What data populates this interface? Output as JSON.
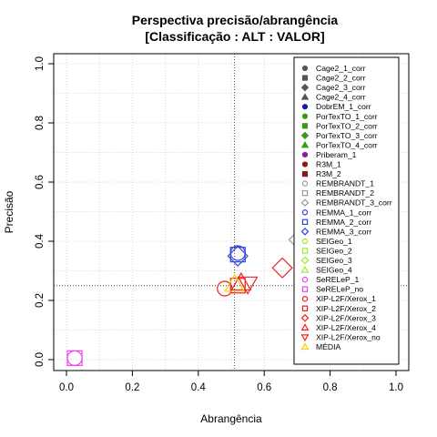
{
  "chart_data": {
    "type": "scatter",
    "title": "Perspectiva precisão/abrangência",
    "subtitle": "[Classificação : ALT : VALOR]",
    "xlabel": "Abrangência",
    "ylabel": "Precisão",
    "xlim": [
      0,
      1
    ],
    "ylim": [
      0,
      1
    ],
    "xticks": [
      "0.0",
      "0.2",
      "0.4",
      "0.6",
      "0.8",
      "1.0"
    ],
    "yticks": [
      "0.0",
      "0.2",
      "0.4",
      "0.6",
      "0.8",
      "1.0"
    ],
    "grid": true,
    "legend_position": "top-right",
    "reference_lines": {
      "vertical_x": 0.51,
      "horizontal_y": 0.25
    },
    "series": [
      {
        "name": "Cage2_1_corr",
        "color": "#555555",
        "marker": "circle-filled",
        "points": []
      },
      {
        "name": "Cage2_2_corr",
        "color": "#555555",
        "marker": "square-filled",
        "points": []
      },
      {
        "name": "Cage2_3_corr",
        "color": "#555555",
        "marker": "diamond-filled",
        "points": []
      },
      {
        "name": "Cage2_4_corr",
        "color": "#555555",
        "marker": "triangle-filled",
        "points": []
      },
      {
        "name": "DobrEM_1_corr",
        "color": "#1a1aaa",
        "marker": "circle-filled",
        "points": []
      },
      {
        "name": "PorTexTO_1_corr",
        "color": "#3a9a1a",
        "marker": "circle-filled",
        "points": []
      },
      {
        "name": "PorTexTO_2_corr",
        "color": "#3a9a1a",
        "marker": "square-filled",
        "points": []
      },
      {
        "name": "PorTexTO_3_corr",
        "color": "#3a9a1a",
        "marker": "diamond-filled",
        "points": []
      },
      {
        "name": "PorTexTO_4_corr",
        "color": "#3a9a1a",
        "marker": "triangle-filled",
        "points": []
      },
      {
        "name": "Priberam_1",
        "color": "#8a1aa0",
        "marker": "circle-filled",
        "points": []
      },
      {
        "name": "R3M_1",
        "color": "#8b1a1a",
        "marker": "circle-filled",
        "points": []
      },
      {
        "name": "R3M_2",
        "color": "#8b1a1a",
        "marker": "square-filled",
        "points": []
      },
      {
        "name": "REMBRANDT_1",
        "color": "#999999",
        "marker": "circle-open",
        "points": []
      },
      {
        "name": "REMBRANDT_2",
        "color": "#999999",
        "marker": "square-open",
        "points": []
      },
      {
        "name": "REMBRANDT_3_corr",
        "color": "#999999",
        "marker": "diamond-open",
        "points": [
          [
            0.705,
            0.405
          ]
        ]
      },
      {
        "name": "REMMA_1_corr",
        "color": "#3344dd",
        "marker": "circle-open",
        "points": [
          [
            0.52,
            0.36
          ]
        ]
      },
      {
        "name": "REMMA_2_corr",
        "color": "#3344dd",
        "marker": "square-open",
        "points": [
          [
            0.52,
            0.355
          ]
        ]
      },
      {
        "name": "REMMA_3_corr",
        "color": "#3344dd",
        "marker": "diamond-open",
        "points": [
          [
            0.52,
            0.35
          ]
        ]
      },
      {
        "name": "SEIGeo_1",
        "color": "#99ee22",
        "marker": "circle-open",
        "points": []
      },
      {
        "name": "SEIGeo_2",
        "color": "#99ee22",
        "marker": "square-open",
        "points": []
      },
      {
        "name": "SEIGeo_3",
        "color": "#99ee22",
        "marker": "diamond-open",
        "points": []
      },
      {
        "name": "SEIGeo_4",
        "color": "#99ee22",
        "marker": "triangle-open",
        "points": []
      },
      {
        "name": "SeRELeP_1",
        "color": "#ee44ee",
        "marker": "circle-open",
        "points": [
          [
            0.025,
            0.005
          ]
        ]
      },
      {
        "name": "SeRELeP_no",
        "color": "#ee44ee",
        "marker": "square-open",
        "points": [
          [
            0.025,
            0.005
          ]
        ]
      },
      {
        "name": "XIP-L2F/Xerox_1",
        "color": "#ee2222",
        "marker": "circle-open",
        "points": [
          [
            0.48,
            0.24
          ]
        ]
      },
      {
        "name": "XIP-L2F/Xerox_2",
        "color": "#ee2222",
        "marker": "square-open",
        "points": [
          [
            0.52,
            0.25
          ]
        ]
      },
      {
        "name": "XIP-L2F/Xerox_3",
        "color": "#ee2222",
        "marker": "diamond-open",
        "points": [
          [
            0.655,
            0.31
          ]
        ]
      },
      {
        "name": "XIP-L2F/Xerox_4",
        "color": "#ee2222",
        "marker": "triangle-open",
        "points": [
          [
            0.53,
            0.26
          ]
        ]
      },
      {
        "name": "XIP-L2F/Xerox_no",
        "color": "#ee2222",
        "marker": "triangle-down-open",
        "points": [
          [
            0.55,
            0.255
          ]
        ]
      },
      {
        "name": "MÉDIA",
        "color": "#ffcc00",
        "marker": "triangle-open",
        "points": [
          [
            0.51,
            0.255
          ]
        ]
      }
    ]
  }
}
